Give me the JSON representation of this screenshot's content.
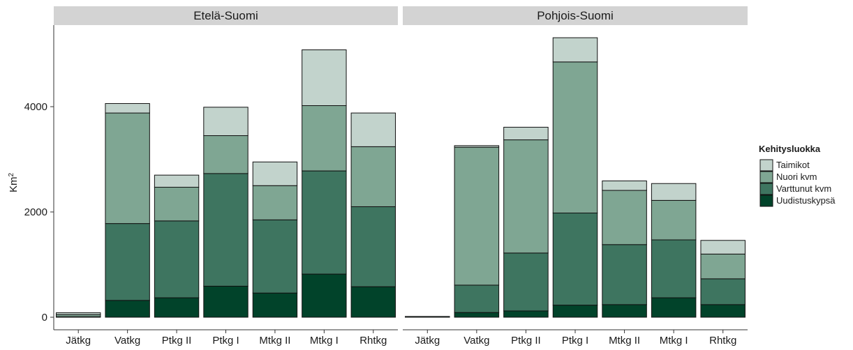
{
  "chart_data": {
    "type": "bar",
    "stacked": true,
    "ylabel": "Km",
    "ylabel_superscript": "2",
    "ylim": [
      0,
      5400
    ],
    "yticks": [
      0,
      2000,
      4000
    ],
    "grid": false,
    "legend_title": "Kehitysluokka",
    "legend_position": "right",
    "categories": [
      "Jätkg",
      "Vatkg",
      "Ptkg II",
      "Ptkg I",
      "Mtkg II",
      "Mtkg I",
      "Rhtkg"
    ],
    "stack_order": [
      "Uudistuskypsä",
      "Varttunut kvm",
      "Nuori kvm",
      "Taimikot"
    ],
    "legend_order": [
      "Taimikot",
      "Nuori kvm",
      "Varttunut kvm",
      "Uudistuskypsä"
    ],
    "colors": {
      "Taimikot": "#c2d3cc",
      "Nuori kvm": "#7fa693",
      "Varttunut kvm": "#3e7560",
      "Uudistuskypsä": "#01432a"
    },
    "panels": [
      {
        "name": "Etelä-Suomi",
        "series": [
          {
            "name": "Uudistuskypsä",
            "values": [
              0,
              320,
              370,
              590,
              460,
              820,
              580
            ]
          },
          {
            "name": "Varttunut kvm",
            "values": [
              10,
              1460,
              1460,
              2140,
              1390,
              1960,
              1520
            ]
          },
          {
            "name": "Nuori kvm",
            "values": [
              40,
              2100,
              640,
              720,
              650,
              1240,
              1140
            ]
          },
          {
            "name": "Taimikot",
            "values": [
              35,
              180,
              230,
              540,
              450,
              1060,
              640
            ]
          }
        ]
      },
      {
        "name": "Pohjois-Suomi",
        "series": [
          {
            "name": "Uudistuskypsä",
            "values": [
              0,
              90,
              120,
              230,
              240,
              370,
              240
            ]
          },
          {
            "name": "Varttunut kvm",
            "values": [
              15,
              520,
              1100,
              1750,
              1140,
              1100,
              490
            ]
          },
          {
            "name": "Nuori kvm",
            "values": [
              0,
              2620,
              2150,
              2870,
              1030,
              750,
              470
            ]
          },
          {
            "name": "Taimikot",
            "values": [
              0,
              30,
              240,
              460,
              180,
              320,
              260
            ]
          }
        ]
      }
    ]
  }
}
